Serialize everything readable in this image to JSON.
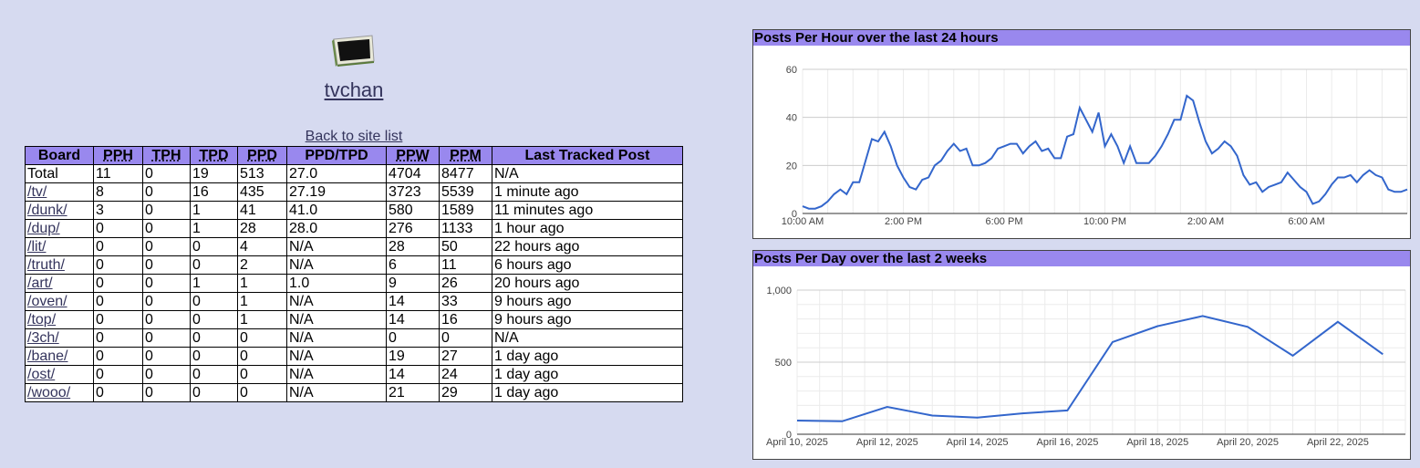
{
  "site": {
    "title": "tvchan",
    "back_link": "Back to site list",
    "logo_icon": "tv-icon"
  },
  "table": {
    "headers": [
      "Board",
      "PPH",
      "TPH",
      "TPD",
      "PPD",
      "PPD/TPD",
      "PPW",
      "PPM",
      "Last Tracked Post"
    ],
    "rows": [
      [
        "Total",
        "11",
        "0",
        "19",
        "513",
        "27.0",
        "4704",
        "8477",
        "N/A"
      ],
      [
        "/tv/",
        "8",
        "0",
        "16",
        "435",
        "27.19",
        "3723",
        "5539",
        "1 minute ago"
      ],
      [
        "/dunk/",
        "3",
        "0",
        "1",
        "41",
        "41.0",
        "580",
        "1589",
        "11 minutes ago"
      ],
      [
        "/dup/",
        "0",
        "0",
        "1",
        "28",
        "28.0",
        "276",
        "1133",
        "1 hour ago"
      ],
      [
        "/lit/",
        "0",
        "0",
        "0",
        "4",
        "N/A",
        "28",
        "50",
        "22 hours ago"
      ],
      [
        "/truth/",
        "0",
        "0",
        "0",
        "2",
        "N/A",
        "6",
        "11",
        "6 hours ago"
      ],
      [
        "/art/",
        "0",
        "0",
        "1",
        "1",
        "1.0",
        "9",
        "26",
        "20 hours ago"
      ],
      [
        "/oven/",
        "0",
        "0",
        "0",
        "1",
        "N/A",
        "14",
        "33",
        "9 hours ago"
      ],
      [
        "/top/",
        "0",
        "0",
        "0",
        "1",
        "N/A",
        "14",
        "16",
        "9 hours ago"
      ],
      [
        "/3ch/",
        "0",
        "0",
        "0",
        "0",
        "N/A",
        "0",
        "0",
        "N/A"
      ],
      [
        "/bane/",
        "0",
        "0",
        "0",
        "0",
        "N/A",
        "19",
        "27",
        "1 day ago"
      ],
      [
        "/ost/",
        "0",
        "0",
        "0",
        "0",
        "N/A",
        "14",
        "24",
        "1 day ago"
      ],
      [
        "/wooo/",
        "0",
        "0",
        "0",
        "0",
        "N/A",
        "21",
        "29",
        "1 day ago"
      ]
    ]
  },
  "colors": {
    "background": "#d6daf0",
    "header": "#9988ee",
    "line": "#3366cc",
    "link": "#34345c"
  },
  "chart_data": [
    {
      "type": "line",
      "title": "Posts Per Hour over the last 24 hours",
      "ylim": [
        0,
        60
      ],
      "yticks": [
        "0",
        "20",
        "40",
        "60"
      ],
      "xticks": [
        {
          "label": "10:00 AM",
          "at": 0
        },
        {
          "label": "2:00 PM",
          "at": 4
        },
        {
          "label": "6:00 PM",
          "at": 8
        },
        {
          "label": "10:00 PM",
          "at": 12
        },
        {
          "label": "2:00 AM",
          "at": 16
        },
        {
          "label": "6:00 AM",
          "at": 20
        }
      ],
      "xrange": [
        0,
        24
      ],
      "grid": true,
      "x": [
        0,
        0.25,
        0.5,
        0.75,
        1,
        1.25,
        1.5,
        1.75,
        2,
        2.25,
        2.5,
        2.75,
        3,
        3.25,
        3.5,
        3.75,
        4,
        4.25,
        4.5,
        4.75,
        5,
        5.25,
        5.5,
        5.75,
        6,
        6.25,
        6.5,
        6.75,
        7,
        7.25,
        7.5,
        7.75,
        8,
        8.25,
        8.5,
        8.75,
        9,
        9.25,
        9.5,
        9.75,
        10,
        10.25,
        10.5,
        10.75,
        11,
        11.25,
        11.5,
        11.75,
        12,
        12.25,
        12.5,
        12.75,
        13,
        13.25,
        13.5,
        13.75,
        14,
        14.25,
        14.5,
        14.75,
        15,
        15.25,
        15.5,
        15.75,
        16,
        16.25,
        16.5,
        16.75,
        17,
        17.25,
        17.5,
        17.75,
        18,
        18.25,
        18.5,
        18.75,
        19,
        19.25,
        19.5,
        19.75,
        20,
        20.25,
        20.5,
        20.75,
        21,
        21.25,
        21.5,
        21.75,
        22,
        22.25,
        22.5,
        22.75,
        23,
        23.25,
        23.5,
        23.75,
        24
      ],
      "y": [
        3,
        2,
        2,
        3,
        5,
        8,
        10,
        8,
        13,
        13,
        22,
        31,
        30,
        34,
        28,
        20,
        15,
        11,
        10,
        14,
        15,
        20,
        22,
        26,
        29,
        26,
        27,
        20,
        20,
        21,
        23,
        27,
        28,
        29,
        29,
        25,
        28,
        30,
        26,
        27,
        23,
        23,
        32,
        33,
        44,
        39,
        34,
        42,
        28,
        33,
        28,
        21,
        28,
        21,
        21,
        21,
        24,
        28,
        33,
        39,
        39,
        49,
        47,
        38,
        30,
        25,
        27,
        30,
        28,
        24,
        16,
        12,
        13,
        9,
        11,
        12,
        13,
        17,
        14,
        11,
        9,
        4,
        5,
        8,
        12,
        15,
        15,
        16,
        13,
        16,
        18,
        16,
        15,
        10,
        9,
        9,
        10
      ]
    },
    {
      "type": "line",
      "title": "Posts Per Day over the last 2 weeks",
      "ylim": [
        0,
        1000
      ],
      "yticks": [
        "0",
        "500",
        "1,000"
      ],
      "x": [
        "April 10, 2025",
        "April 11, 2025",
        "April 12, 2025",
        "April 13, 2025",
        "April 14, 2025",
        "April 15, 2025",
        "April 16, 2025",
        "April 17, 2025",
        "April 18, 2025",
        "April 19, 2025",
        "April 20, 2025",
        "April 21, 2025",
        "April 22, 2025",
        "April 23, 2025"
      ],
      "xtick_labels": [
        "April 10, 2025",
        "April 12, 2025",
        "April 14, 2025",
        "April 16, 2025",
        "April 18, 2025",
        "April 20, 2025",
        "April 22, 2025"
      ],
      "xtick_index": [
        0,
        2,
        4,
        6,
        8,
        10,
        12
      ],
      "y": [
        95,
        90,
        190,
        130,
        115,
        145,
        165,
        640,
        750,
        820,
        745,
        545,
        780,
        555
      ],
      "grid": true
    }
  ]
}
